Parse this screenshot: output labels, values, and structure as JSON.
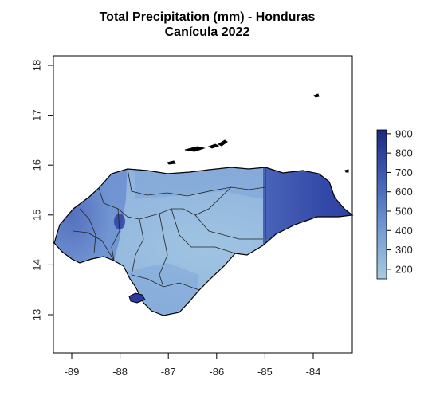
{
  "title": {
    "line1": "Total Precipitation (mm) - Honduras",
    "line2": "Canícula 2022"
  },
  "map": {
    "x_ticks": [
      "-89",
      "-88",
      "-87",
      "-86",
      "-85",
      "-84"
    ],
    "x_values": [
      -89,
      -88,
      -87,
      -86,
      -85,
      -84
    ],
    "y_ticks": [
      "13",
      "14",
      "15",
      "16",
      "17",
      "18"
    ],
    "y_values": [
      13,
      14,
      15,
      16,
      17,
      18
    ]
  },
  "legend": {
    "labels": [
      "900",
      "800",
      "700",
      "600",
      "500",
      "400",
      "300",
      "200"
    ],
    "values": [
      900,
      800,
      700,
      600,
      500,
      400,
      300,
      200
    ],
    "range": [
      150,
      920
    ],
    "color_low": "#a8cbe0",
    "color_high": "#1c2a80"
  },
  "colors": {
    "axis": "#000000",
    "department_border": "#222222"
  }
}
